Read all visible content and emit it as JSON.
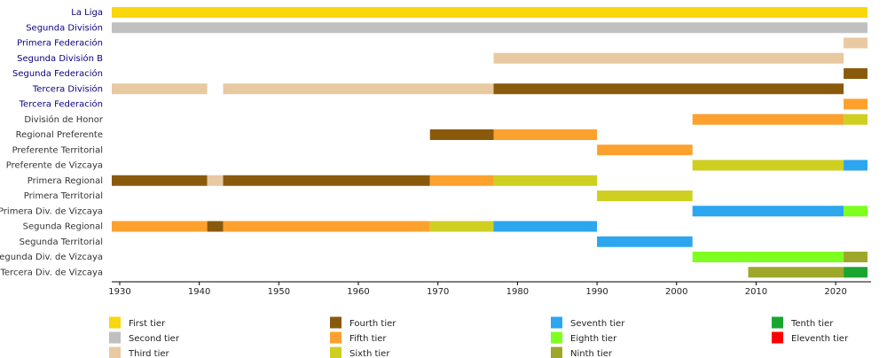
{
  "chart_data": {
    "type": "timeline",
    "xlim": [
      1929,
      2024
    ],
    "xticks": [
      1930,
      1940,
      1950,
      1960,
      1970,
      1980,
      1990,
      2000,
      2010,
      2020
    ],
    "tiers": [
      {
        "name": "First tier",
        "color": "#f8d70c"
      },
      {
        "name": "Second tier",
        "color": "#c0c0c0"
      },
      {
        "name": "Third tier",
        "color": "#e8c9a1"
      },
      {
        "name": "Fourth tier",
        "color": "#8a5a0c"
      },
      {
        "name": "Fifth tier",
        "color": "#fca12e"
      },
      {
        "name": "Sixth tier",
        "color": "#cfcf22"
      },
      {
        "name": "Seventh tier",
        "color": "#2ba6ef"
      },
      {
        "name": "Eighth tier",
        "color": "#7fff20"
      },
      {
        "name": "Ninth tier",
        "color": "#9da72a"
      },
      {
        "name": "Tenth tier",
        "color": "#1aa531"
      },
      {
        "name": "Eleventh tier",
        "color": "#ff0000"
      }
    ],
    "rows": [
      {
        "label": "La Liga",
        "link": true,
        "bars": [
          {
            "start": 1929,
            "end": 2024,
            "tier": 1
          }
        ]
      },
      {
        "label": "Segunda División",
        "link": true,
        "bars": [
          {
            "start": 1929,
            "end": 2024,
            "tier": 2
          }
        ]
      },
      {
        "label": "Primera Federación",
        "link": true,
        "bars": [
          {
            "start": 2021,
            "end": 2024,
            "tier": 3
          }
        ]
      },
      {
        "label": "Segunda División B",
        "link": true,
        "bars": [
          {
            "start": 1977,
            "end": 2021,
            "tier": 3
          }
        ]
      },
      {
        "label": "Segunda Federación",
        "link": true,
        "bars": [
          {
            "start": 2021,
            "end": 2024,
            "tier": 4
          }
        ]
      },
      {
        "label": "Tercera División",
        "link": true,
        "bars": [
          {
            "start": 1929,
            "end": 1941,
            "tier": 3
          },
          {
            "start": 1943,
            "end": 1977,
            "tier": 3
          },
          {
            "start": 1977,
            "end": 2021,
            "tier": 4
          }
        ]
      },
      {
        "label": "Tercera Federación",
        "link": true,
        "bars": [
          {
            "start": 2021,
            "end": 2024,
            "tier": 5
          }
        ]
      },
      {
        "label": "División de Honor",
        "link": false,
        "bars": [
          {
            "start": 2002,
            "end": 2021,
            "tier": 5
          },
          {
            "start": 2021,
            "end": 2024,
            "tier": 6
          }
        ]
      },
      {
        "label": "Regional Preferente",
        "link": false,
        "bars": [
          {
            "start": 1969,
            "end": 1977,
            "tier": 4
          },
          {
            "start": 1977,
            "end": 1990,
            "tier": 5
          }
        ]
      },
      {
        "label": "Preferente Territorial",
        "link": false,
        "bars": [
          {
            "start": 1990,
            "end": 2002,
            "tier": 5
          }
        ]
      },
      {
        "label": "Preferente de Vizcaya",
        "link": false,
        "bars": [
          {
            "start": 2002,
            "end": 2021,
            "tier": 6
          },
          {
            "start": 2021,
            "end": 2024,
            "tier": 7
          }
        ]
      },
      {
        "label": "Primera Regional",
        "link": false,
        "bars": [
          {
            "start": 1929,
            "end": 1941,
            "tier": 4
          },
          {
            "start": 1941,
            "end": 1943,
            "tier": 3
          },
          {
            "start": 1943,
            "end": 1969,
            "tier": 4
          },
          {
            "start": 1969,
            "end": 1977,
            "tier": 5
          },
          {
            "start": 1977,
            "end": 1990,
            "tier": 6
          }
        ]
      },
      {
        "label": "Primera Territorial",
        "link": false,
        "bars": [
          {
            "start": 1990,
            "end": 2002,
            "tier": 6
          }
        ]
      },
      {
        "label": "Primera Div. de Vizcaya",
        "link": false,
        "bars": [
          {
            "start": 2002,
            "end": 2021,
            "tier": 7
          },
          {
            "start": 2021,
            "end": 2024,
            "tier": 8
          }
        ]
      },
      {
        "label": "Segunda Regional",
        "link": false,
        "bars": [
          {
            "start": 1929,
            "end": 1941,
            "tier": 5
          },
          {
            "start": 1941,
            "end": 1943,
            "tier": 4
          },
          {
            "start": 1943,
            "end": 1969,
            "tier": 5
          },
          {
            "start": 1969,
            "end": 1977,
            "tier": 6
          },
          {
            "start": 1977,
            "end": 1990,
            "tier": 7
          }
        ]
      },
      {
        "label": "Segunda Territorial",
        "link": false,
        "bars": [
          {
            "start": 1990,
            "end": 2002,
            "tier": 7
          }
        ]
      },
      {
        "label": "Segunda Div. de Vizcaya",
        "link": false,
        "bars": [
          {
            "start": 2002,
            "end": 2021,
            "tier": 8
          },
          {
            "start": 2021,
            "end": 2024,
            "tier": 9
          }
        ]
      },
      {
        "label": "Tercera Div. de Vizcaya",
        "link": false,
        "bars": [
          {
            "start": 2009,
            "end": 2021,
            "tier": 9
          },
          {
            "start": 2021,
            "end": 2024,
            "tier": 10
          }
        ]
      }
    ]
  }
}
